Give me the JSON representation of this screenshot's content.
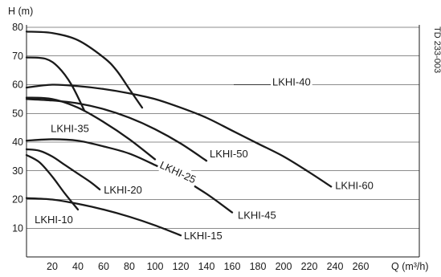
{
  "chart_data": {
    "type": "line",
    "xlabel": "Q (m³/h)",
    "ylabel": "H (m)",
    "xlim": [
      0,
      280
    ],
    "ylim": [
      0,
      80
    ],
    "x_ticks": [
      20,
      40,
      60,
      80,
      100,
      120,
      140,
      160,
      180,
      200,
      220,
      240,
      260
    ],
    "y_ticks": [
      10,
      20,
      30,
      40,
      50,
      60,
      70,
      80
    ],
    "grid": "horizontal",
    "code": "TD 233-003",
    "series": [
      {
        "name": "LKHI-10",
        "x": [
          0,
          10,
          20,
          30,
          40
        ],
        "y": [
          35.5,
          33.0,
          28.0,
          22.0,
          16.5
        ]
      },
      {
        "name": "LKHI-15",
        "x": [
          0,
          20,
          40,
          60,
          80,
          100,
          120
        ],
        "y": [
          20.5,
          20.0,
          18.5,
          16.5,
          14.0,
          11.0,
          7.5
        ]
      },
      {
        "name": "LKHI-20",
        "x": [
          0,
          10,
          20,
          30,
          40,
          50,
          57
        ],
        "y": [
          37.5,
          37.0,
          35.0,
          32.0,
          29.0,
          26.0,
          23.5
        ]
      },
      {
        "name": "LKHI-25",
        "x": [
          0,
          20,
          40,
          60,
          80,
          100
        ],
        "y": [
          55.5,
          55.0,
          52.0,
          47.0,
          41.0,
          34.0
        ]
      },
      {
        "name": "LKHI-35",
        "x": [
          0,
          15,
          25,
          35,
          45
        ],
        "y": [
          69.5,
          69.0,
          66.0,
          60.0,
          51.0
        ]
      },
      {
        "name": "LKHI-40",
        "x": [
          0,
          20,
          40,
          60,
          70,
          80,
          90
        ],
        "y": [
          78.5,
          78.0,
          75.5,
          69.5,
          65.0,
          58.5,
          52.0
        ]
      },
      {
        "name": "LKHI-45",
        "x": [
          0,
          20,
          40,
          60,
          80,
          100,
          120,
          140,
          160
        ],
        "y": [
          40.5,
          41.0,
          40.5,
          38.5,
          36.0,
          32.0,
          27.5,
          22.0,
          15.5
        ]
      },
      {
        "name": "LKHI-50",
        "x": [
          0,
          20,
          40,
          60,
          80,
          100,
          120,
          140
        ],
        "y": [
          55.0,
          54.5,
          53.5,
          51.5,
          48.5,
          44.5,
          39.5,
          33.5
        ]
      },
      {
        "name": "LKHI-60",
        "x": [
          0,
          20,
          40,
          60,
          80,
          100,
          120,
          140,
          160,
          180,
          200,
          220,
          237
        ],
        "y": [
          59.0,
          60.0,
          59.5,
          58.5,
          57.0,
          55.0,
          52.0,
          48.5,
          44.0,
          39.5,
          35.0,
          29.5,
          24.5
        ]
      }
    ],
    "labels": [
      {
        "series": "LKHI-10",
        "text": "LKHI-10"
      },
      {
        "series": "LKHI-15",
        "text": "LKHI-15"
      },
      {
        "series": "LKHI-20",
        "text": "LKHI-20"
      },
      {
        "series": "LKHI-25",
        "text": "LKHI-25"
      },
      {
        "series": "LKHI-35",
        "text": "LKHI-35"
      },
      {
        "series": "LKHI-40",
        "text": "LKHI-40"
      },
      {
        "series": "LKHI-45",
        "text": "LKHI-45"
      },
      {
        "series": "LKHI-50",
        "text": "LKHI-50"
      },
      {
        "series": "LKHI-60",
        "text": "LKHI-60"
      }
    ]
  }
}
